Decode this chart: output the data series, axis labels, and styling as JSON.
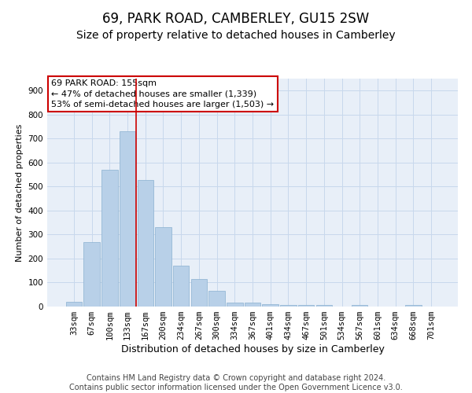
{
  "title": "69, PARK ROAD, CAMBERLEY, GU15 2SW",
  "subtitle": "Size of property relative to detached houses in Camberley",
  "xlabel": "Distribution of detached houses by size in Camberley",
  "ylabel": "Number of detached properties",
  "categories": [
    "33sqm",
    "67sqm",
    "100sqm",
    "133sqm",
    "167sqm",
    "200sqm",
    "234sqm",
    "267sqm",
    "300sqm",
    "334sqm",
    "367sqm",
    "401sqm",
    "434sqm",
    "467sqm",
    "501sqm",
    "534sqm",
    "567sqm",
    "601sqm",
    "634sqm",
    "668sqm",
    "701sqm"
  ],
  "values": [
    20,
    268,
    571,
    732,
    528,
    330,
    170,
    115,
    66,
    18,
    18,
    10,
    7,
    7,
    7,
    0,
    7,
    0,
    0,
    7,
    0
  ],
  "bar_color": "#b8d0e8",
  "bar_edge_color": "#8ab0d0",
  "grid_color": "#c8d8ec",
  "background_color": "#e8eff8",
  "vline_color": "#cc0000",
  "annotation_text": "69 PARK ROAD: 155sqm\n← 47% of detached houses are smaller (1,339)\n53% of semi-detached houses are larger (1,503) →",
  "annotation_box_color": "#ffffff",
  "annotation_box_edge": "#cc0000",
  "footer_line1": "Contains HM Land Registry data © Crown copyright and database right 2024.",
  "footer_line2": "Contains public sector information licensed under the Open Government Licence v3.0.",
  "ylim": [
    0,
    950
  ],
  "yticks": [
    0,
    100,
    200,
    300,
    400,
    500,
    600,
    700,
    800,
    900
  ],
  "title_fontsize": 12,
  "subtitle_fontsize": 10,
  "xlabel_fontsize": 9,
  "ylabel_fontsize": 8,
  "tick_fontsize": 7.5,
  "footer_fontsize": 7,
  "annotation_fontsize": 8
}
